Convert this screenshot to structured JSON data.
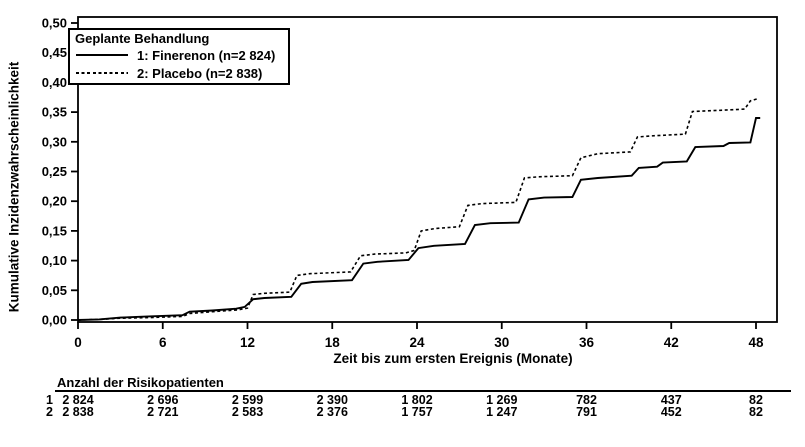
{
  "colors": {
    "line": "#000000",
    "background": "#ffffff"
  },
  "figure": {
    "y_axis_title": "Kumulative Inzidenzwahrscheinlichkeit",
    "x_axis_title": "Zeit bis zum ersten Ereignis (Monate)",
    "legend": {
      "title": "Geplante Behandlung",
      "entries": [
        {
          "label": "1: Finerenon (n=2 824)",
          "style": "solid"
        },
        {
          "label": "2: Placebo (n=2 838)",
          "style": "dashed"
        }
      ]
    },
    "risk_table": {
      "title": "Anzahl der Risikopatienten",
      "rows": [
        {
          "label": "1",
          "values": [
            "2 824",
            "2 696",
            "2 599",
            "2 390",
            "1 802",
            "1 269",
            "782",
            "437",
            "82"
          ]
        },
        {
          "label": "2",
          "values": [
            "2 838",
            "2 721",
            "2 583",
            "2 376",
            "1 757",
            "1 247",
            "791",
            "452",
            "82"
          ]
        }
      ]
    }
  },
  "chart_data": {
    "type": "line",
    "subtype": "kaplan-meier-step",
    "title": "",
    "xlabel": "Zeit bis zum ersten Ereignis (Monate)",
    "ylabel": "Kumulative Inzidenzwahrscheinlichkeit",
    "xlim": [
      0,
      48
    ],
    "ylim": [
      0,
      0.5
    ],
    "x_ticks": [
      0,
      6,
      12,
      18,
      24,
      30,
      36,
      42,
      48
    ],
    "x_tick_labels": [
      "0",
      "6",
      "12",
      "18",
      "24",
      "30",
      "36",
      "42",
      "48"
    ],
    "y_ticks": [
      0.0,
      0.05,
      0.1,
      0.15,
      0.2,
      0.25,
      0.3,
      0.35,
      0.4,
      0.45,
      0.5
    ],
    "y_tick_labels": [
      "0,00",
      "0,05",
      "0,10",
      "0,15",
      "0,20",
      "0,25",
      "0,30",
      "0,35",
      "0,40",
      "0,45",
      "0,50"
    ],
    "grid": false,
    "legend_position": "top-left-inside",
    "series": [
      {
        "name": "1: Finerenon (n=2 824)",
        "line": "solid",
        "points": [
          [
            0,
            0
          ],
          [
            1.5,
            0.001
          ],
          [
            3,
            0.004
          ],
          [
            5,
            0.006
          ],
          [
            7.4,
            0.008
          ],
          [
            7.9,
            0.014
          ],
          [
            9.5,
            0.016
          ],
          [
            11.2,
            0.019
          ],
          [
            11.8,
            0.022
          ],
          [
            12.4,
            0.035
          ],
          [
            13.2,
            0.037
          ],
          [
            15.1,
            0.039
          ],
          [
            15.8,
            0.061
          ],
          [
            16.6,
            0.064
          ],
          [
            19.4,
            0.067
          ],
          [
            20.2,
            0.095
          ],
          [
            21.2,
            0.098
          ],
          [
            23.4,
            0.101
          ],
          [
            24.1,
            0.121
          ],
          [
            25.2,
            0.125
          ],
          [
            27.4,
            0.128
          ],
          [
            28.1,
            0.16
          ],
          [
            29.2,
            0.163
          ],
          [
            31.2,
            0.164
          ],
          [
            31.9,
            0.203
          ],
          [
            33,
            0.206
          ],
          [
            35,
            0.207
          ],
          [
            35.6,
            0.236
          ],
          [
            36.8,
            0.239
          ],
          [
            39.2,
            0.243
          ],
          [
            39.7,
            0.256
          ],
          [
            41,
            0.258
          ],
          [
            41.4,
            0.265
          ],
          [
            43.1,
            0.267
          ],
          [
            43.7,
            0.291
          ],
          [
            45.7,
            0.293
          ],
          [
            46.1,
            0.298
          ],
          [
            47.6,
            0.299
          ],
          [
            48,
            0.34
          ],
          [
            48.3,
            0.34
          ]
        ]
      },
      {
        "name": "2: Placebo (n=2 838)",
        "line": "dashed",
        "points": [
          [
            0,
            0
          ],
          [
            1.5,
            0.001
          ],
          [
            3,
            0.003
          ],
          [
            5,
            0.004
          ],
          [
            7.4,
            0.006
          ],
          [
            7.9,
            0.011
          ],
          [
            9.5,
            0.014
          ],
          [
            11.3,
            0.017
          ],
          [
            12,
            0.02
          ],
          [
            12.4,
            0.043
          ],
          [
            13.2,
            0.045
          ],
          [
            15,
            0.047
          ],
          [
            15.5,
            0.075
          ],
          [
            16.4,
            0.078
          ],
          [
            19.3,
            0.081
          ],
          [
            20,
            0.108
          ],
          [
            21,
            0.111
          ],
          [
            23.2,
            0.113
          ],
          [
            23.8,
            0.117
          ],
          [
            24.3,
            0.15
          ],
          [
            25.3,
            0.154
          ],
          [
            27,
            0.157
          ],
          [
            27.6,
            0.193
          ],
          [
            28.6,
            0.196
          ],
          [
            31,
            0.198
          ],
          [
            31.6,
            0.239
          ],
          [
            32.6,
            0.241
          ],
          [
            35,
            0.243
          ],
          [
            35.6,
            0.273
          ],
          [
            36.8,
            0.28
          ],
          [
            39.1,
            0.283
          ],
          [
            39.6,
            0.308
          ],
          [
            40.6,
            0.31
          ],
          [
            43,
            0.313
          ],
          [
            43.5,
            0.351
          ],
          [
            45.5,
            0.353
          ],
          [
            47.2,
            0.355
          ],
          [
            47.6,
            0.369
          ],
          [
            48.2,
            0.373
          ]
        ]
      }
    ]
  }
}
